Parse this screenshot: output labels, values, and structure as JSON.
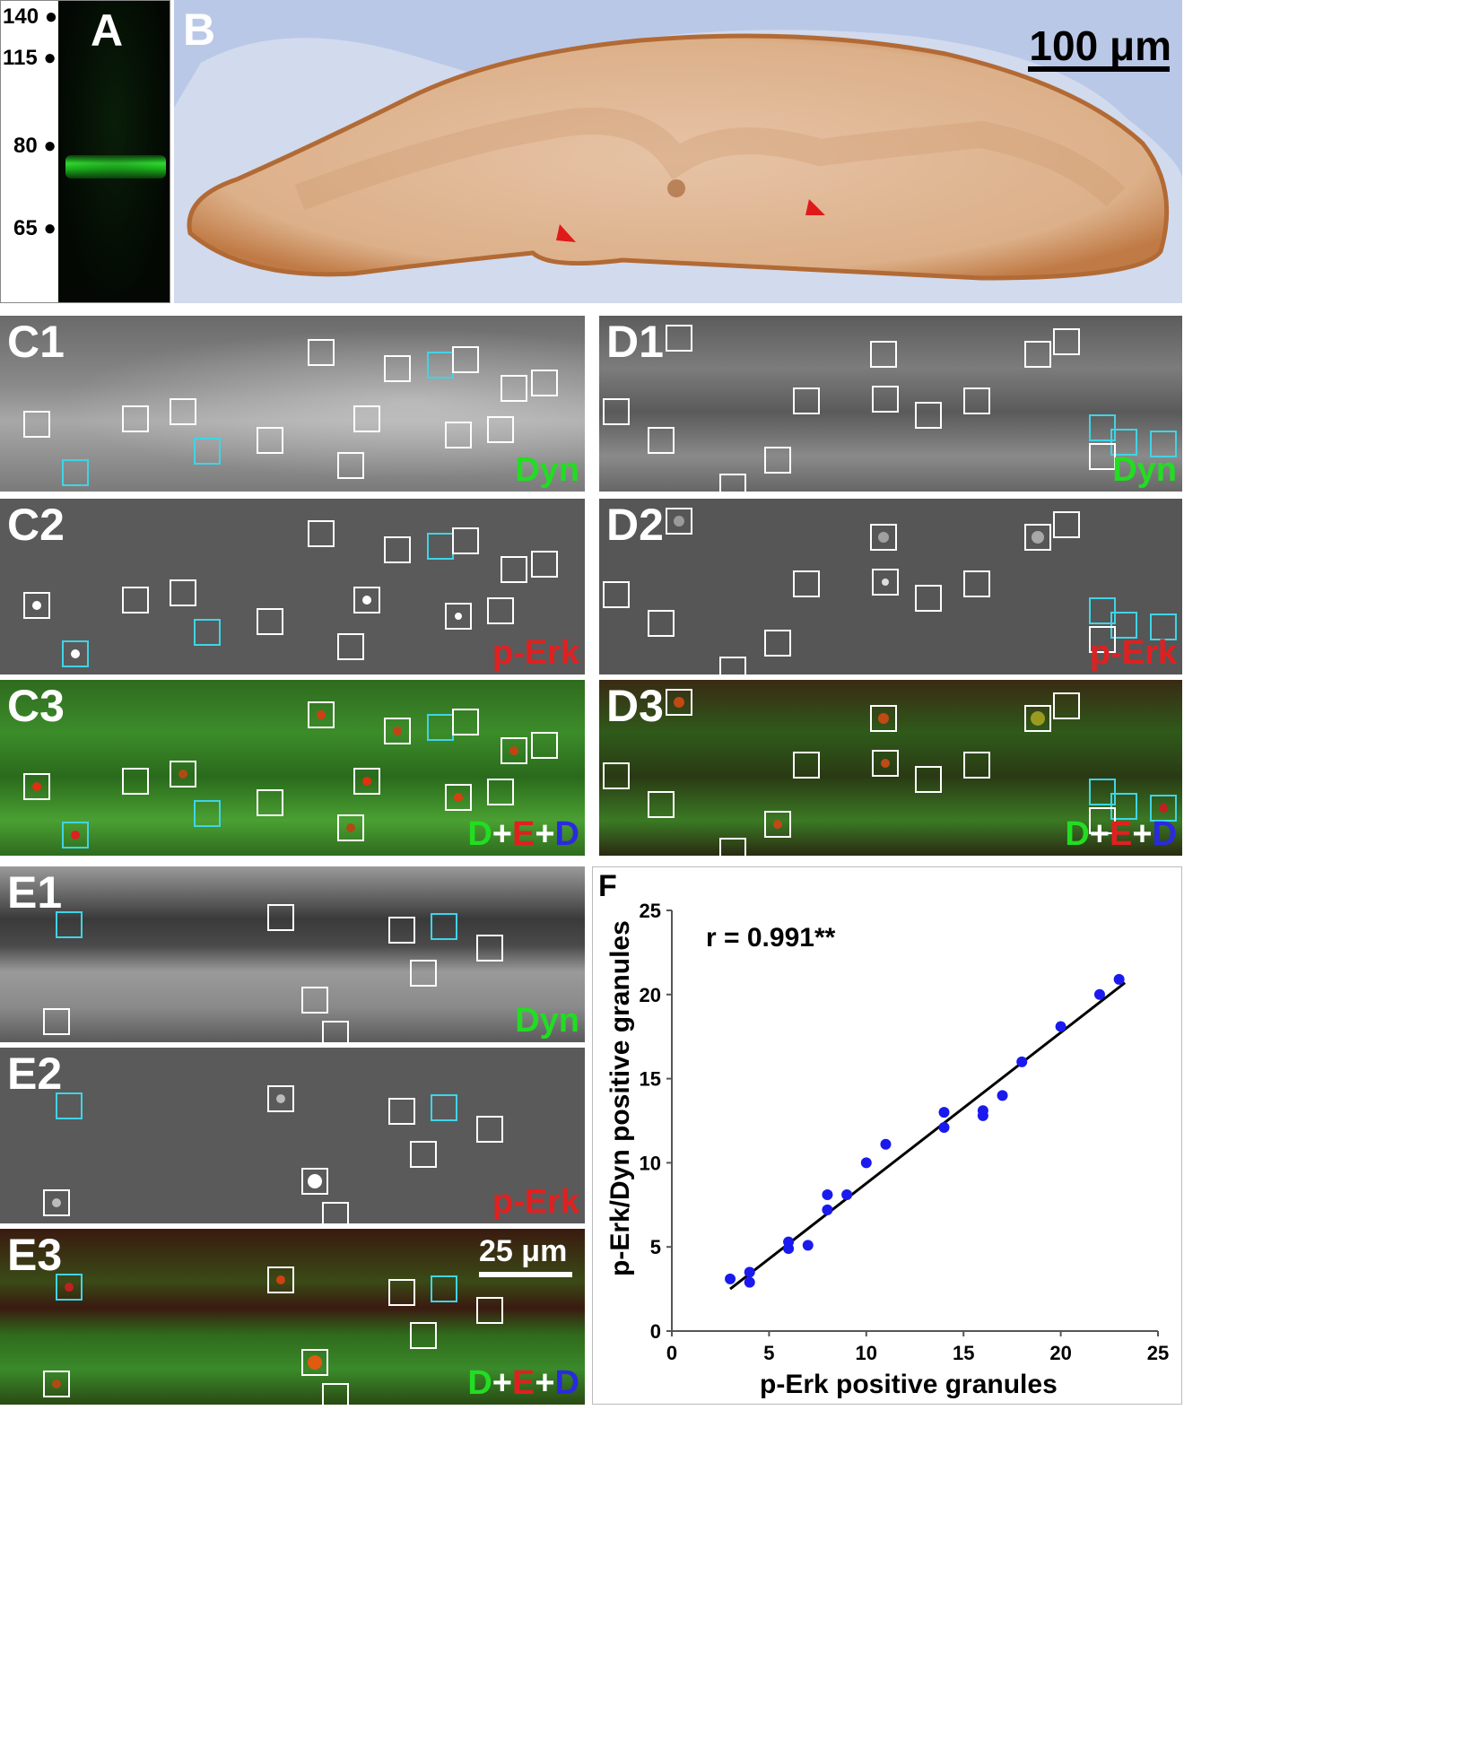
{
  "panel_a": {
    "label": "A",
    "markers": [
      "140",
      "115",
      "80",
      "65"
    ]
  },
  "panel_b": {
    "label": "B",
    "scale": "100 μm"
  },
  "panel_c": {
    "row1": {
      "label": "C1",
      "channel": "Dyn",
      "channel_color": "#22dd22"
    },
    "row2": {
      "label": "C2",
      "channel": "p-Erk",
      "channel_color": "#e02020"
    },
    "row3": {
      "label": "C3",
      "merge": [
        "D",
        "+",
        "E",
        "+",
        "D"
      ]
    }
  },
  "panel_d": {
    "row1": {
      "label": "D1",
      "channel": "Dyn"
    },
    "row2": {
      "label": "D2",
      "channel": "p-Erk"
    },
    "row3": {
      "label": "D3",
      "merge": [
        "D",
        "+",
        "E",
        "+",
        "D"
      ]
    }
  },
  "panel_e": {
    "row1": {
      "label": "E1",
      "channel": "Dyn"
    },
    "row2": {
      "label": "E2",
      "channel": "p-Erk"
    },
    "row3": {
      "label": "E3",
      "merge": [
        "D",
        "+",
        "E",
        "+",
        "D"
      ],
      "scale": "25 μm"
    }
  },
  "colors": {
    "green": "#22dd22",
    "red": "#e02020",
    "blue": "#2a2ae0",
    "cyan": "#3fd4e6",
    "points": "#1a1aee"
  },
  "chart_data": {
    "type": "scatter",
    "panel_label": "F",
    "annotation": "r = 0.991**",
    "xlabel": "p-Erk positive granules",
    "ylabel": "p-Erk/Dyn positive granules",
    "xlim": [
      0,
      25
    ],
    "ylim": [
      0,
      25
    ],
    "xticks": [
      "0",
      "5",
      "10",
      "15",
      "20",
      "25"
    ],
    "yticks": [
      "0",
      "5",
      "10",
      "15",
      "20",
      "25"
    ],
    "points": [
      [
        3,
        3.1
      ],
      [
        4,
        3.5
      ],
      [
        4,
        2.9
      ],
      [
        6,
        5.3
      ],
      [
        6,
        4.9
      ],
      [
        7,
        5.1
      ],
      [
        8,
        8.1
      ],
      [
        8,
        7.2
      ],
      [
        9,
        8.1
      ],
      [
        10,
        10.0
      ],
      [
        11,
        11.1
      ],
      [
        14,
        13.0
      ],
      [
        14,
        12.1
      ],
      [
        16,
        13.1
      ],
      [
        16,
        12.8
      ],
      [
        17,
        14.0
      ],
      [
        18,
        16.0
      ],
      [
        20,
        18.1
      ],
      [
        22,
        20.0
      ],
      [
        23,
        20.9
      ]
    ],
    "fit_line": {
      "x": [
        3,
        23.3
      ],
      "y": [
        2.5,
        20.7
      ]
    }
  }
}
